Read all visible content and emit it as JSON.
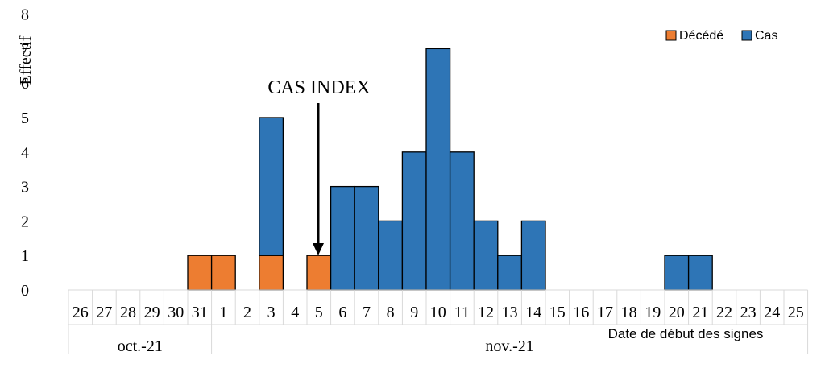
{
  "chart_data": {
    "type": "bar",
    "stacked": true,
    "ylabel": "Effectif",
    "xlabel": "Date de début des signes",
    "ylim": [
      0,
      8
    ],
    "yticks": [
      "0",
      "1",
      "2",
      "3",
      "4",
      "5",
      "6",
      "7",
      "8"
    ],
    "categories": [
      "26",
      "27",
      "28",
      "29",
      "30",
      "31",
      "1",
      "2",
      "3",
      "4",
      "5",
      "6",
      "7",
      "8",
      "9",
      "10",
      "11",
      "12",
      "13",
      "14",
      "15",
      "16",
      "17",
      "18",
      "19",
      "20",
      "21",
      "22",
      "23",
      "24",
      "25"
    ],
    "months": [
      {
        "label": "oct.-21",
        "span": 6
      },
      {
        "label": "nov.-21",
        "span": 25
      }
    ],
    "series": [
      {
        "name": "Décédé",
        "color": "#ED7D31",
        "values": [
          0,
          0,
          0,
          0,
          0,
          1,
          1,
          0,
          1,
          0,
          1,
          0,
          0,
          0,
          0,
          0,
          0,
          0,
          0,
          0,
          0,
          0,
          0,
          0,
          0,
          0,
          0,
          0,
          0,
          0,
          0
        ]
      },
      {
        "name": "Cas",
        "color": "#2E75B6",
        "values": [
          0,
          0,
          0,
          0,
          0,
          0,
          0,
          0,
          4,
          0,
          0,
          3,
          3,
          2,
          4,
          7,
          4,
          2,
          1,
          2,
          0,
          0,
          0,
          0,
          0,
          1,
          1,
          0,
          0,
          0,
          0
        ]
      }
    ],
    "legend_position": "top-right",
    "annotation": {
      "text": "CAS INDEX",
      "category": "5"
    }
  }
}
